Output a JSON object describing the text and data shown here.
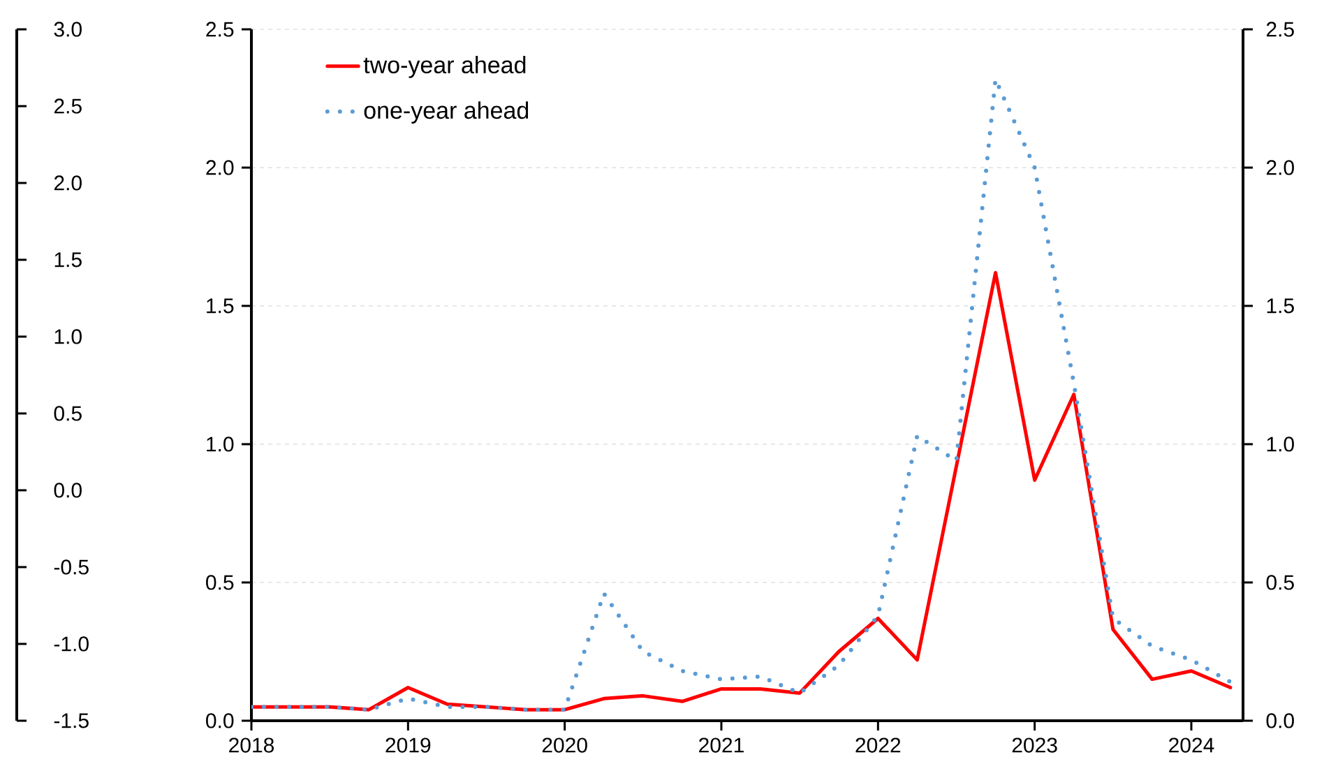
{
  "chart_data": {
    "type": "line",
    "x": [
      2018,
      2018.25,
      2018.5,
      2018.75,
      2019,
      2019.25,
      2019.5,
      2019.75,
      2020,
      2020.25,
      2020.5,
      2020.75,
      2021,
      2021.25,
      2021.5,
      2021.75,
      2022,
      2022.25,
      2022.5,
      2022.75,
      2023,
      2023.25,
      2023.5,
      2023.75,
      2024,
      2024.25
    ],
    "series": [
      {
        "name": "two-year ahead",
        "color": "#ff0000",
        "line_style": "solid",
        "values": [
          0.05,
          0.05,
          0.05,
          0.04,
          0.12,
          0.06,
          0.05,
          0.04,
          0.04,
          0.08,
          0.09,
          0.07,
          0.115,
          0.115,
          0.1,
          0.25,
          0.37,
          0.22,
          0.92,
          1.62,
          0.87,
          1.18,
          0.33,
          0.15,
          0.18,
          0.12
        ]
      },
      {
        "name": "one-year ahead",
        "color": "#5b9bd5",
        "line_style": "dotted",
        "values": [
          0.05,
          0.05,
          0.05,
          0.04,
          0.08,
          0.05,
          0.05,
          0.04,
          0.04,
          0.46,
          0.25,
          0.18,
          0.15,
          0.16,
          0.1,
          0.2,
          0.38,
          1.03,
          0.94,
          2.32,
          2.0,
          1.22,
          0.37,
          0.27,
          0.22,
          0.14
        ]
      }
    ],
    "xlim": [
      2018,
      2024.33
    ],
    "xticks": [
      2018,
      2019,
      2020,
      2021,
      2022,
      2023,
      2024
    ],
    "ylim": [
      0,
      2.5
    ],
    "yticks": [
      {
        "value": 0,
        "label": "0.0"
      },
      0.5,
      {
        "value": 1,
        "label": "1.0"
      },
      1.5,
      {
        "value": 2,
        "label": "2.0"
      },
      2.5
    ],
    "y2lim": [
      0,
      2.5
    ],
    "y2ticks": [
      {
        "value": 0,
        "label": "0.0"
      },
      0.5,
      {
        "value": 1,
        "label": "1.0"
      },
      1.5,
      {
        "value": 2,
        "label": "2.0"
      },
      2.5
    ],
    "y3lim": [
      -1.5,
      3
    ],
    "y3ticks": [
      -1.5,
      {
        "value": -1,
        "label": "-1.0"
      },
      -0.5,
      {
        "value": 0,
        "label": "0.0"
      },
      0.5,
      {
        "value": 1,
        "label": "1.0"
      },
      1.5,
      {
        "value": 2,
        "label": "2.0"
      },
      2.5,
      {
        "value": 3,
        "label": "3.0"
      }
    ],
    "grid": "y",
    "legend": "top left"
  }
}
